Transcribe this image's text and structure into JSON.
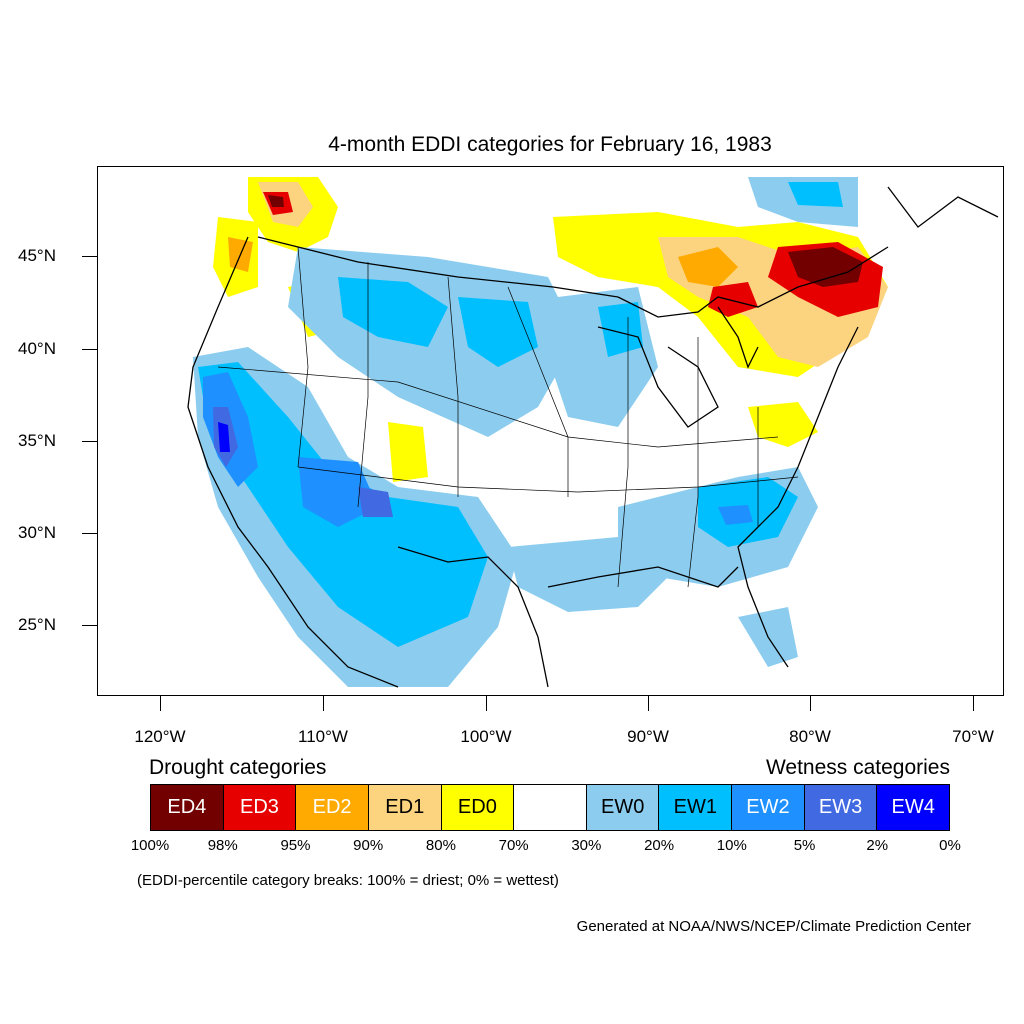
{
  "title": "4-month EDDI categories for February 16, 1983",
  "map": {
    "lat_labels": [
      "45°N",
      "40°N",
      "35°N",
      "30°N",
      "25°N"
    ],
    "lon_labels": [
      "120°W",
      "110°W",
      "100°W",
      "90°W",
      "80°W",
      "70°W"
    ]
  },
  "legend": {
    "drought_heading": "Drought categories",
    "wetness_heading": "Wetness categories",
    "categories": [
      {
        "label": "ED4",
        "color": "#730000",
        "text_color": "#ffffff"
      },
      {
        "label": "ED3",
        "color": "#e60000",
        "text_color": "#ffffff"
      },
      {
        "label": "ED2",
        "color": "#ffaa00",
        "text_color": "#ffffff"
      },
      {
        "label": "ED1",
        "color": "#fcd37f",
        "text_color": "#000000"
      },
      {
        "label": "ED0",
        "color": "#ffff00",
        "text_color": "#000000"
      },
      {
        "label": "",
        "color": "#ffffff",
        "text_color": "#000000"
      },
      {
        "label": "EW0",
        "color": "#8ccdef",
        "text_color": "#000000"
      },
      {
        "label": "EW1",
        "color": "#00bfff",
        "text_color": "#000000"
      },
      {
        "label": "EW2",
        "color": "#1e90ff",
        "text_color": "#ffffff"
      },
      {
        "label": "EW3",
        "color": "#4169e1",
        "text_color": "#ffffff"
      },
      {
        "label": "EW4",
        "color": "#0000ff",
        "text_color": "#ffffff"
      }
    ],
    "breaks": [
      "100%",
      "98%",
      "95%",
      "90%",
      "80%",
      "70%",
      "30%",
      "20%",
      "10%",
      "5%",
      "2%",
      "0%"
    ],
    "note": "(EDDI-percentile category breaks: 100% = driest; 0% = wettest)"
  },
  "credit": "Generated at NOAA/NWS/NCEP/Climate Prediction Center"
}
